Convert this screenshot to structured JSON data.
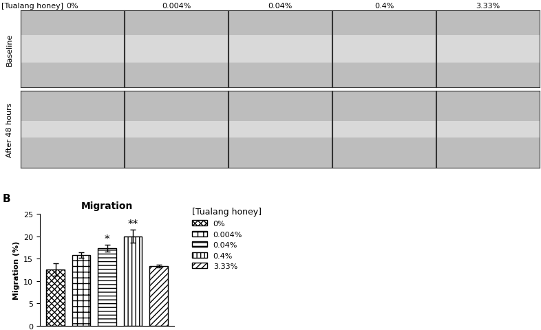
{
  "image_panel": {
    "column_header": "[Tualang honey]",
    "columns": [
      "0%",
      "0.004%",
      "0.04%",
      "0.4%",
      "3.33%"
    ],
    "rows": [
      "Baseline",
      "After 48 hours"
    ]
  },
  "panel_label": "B",
  "chart_data": {
    "type": "bar",
    "title": "Migration",
    "y_label": "Migration (%)",
    "categories": [
      "0%",
      "0.004%",
      "0.04%",
      "0.4%",
      "3.33%"
    ],
    "values": [
      12.6,
      15.8,
      17.3,
      20.0,
      13.3
    ],
    "errors": [
      1.4,
      0.6,
      0.8,
      1.4,
      0.3
    ],
    "significance": [
      null,
      null,
      "*",
      "**",
      null
    ],
    "ylim": [
      0,
      25
    ],
    "yticks": [
      0,
      5,
      10,
      15,
      20,
      25
    ],
    "legend": "upper left",
    "legend_title": "[Tualang honey]",
    "tick_labels": "y",
    "color": "#ffffff"
  }
}
